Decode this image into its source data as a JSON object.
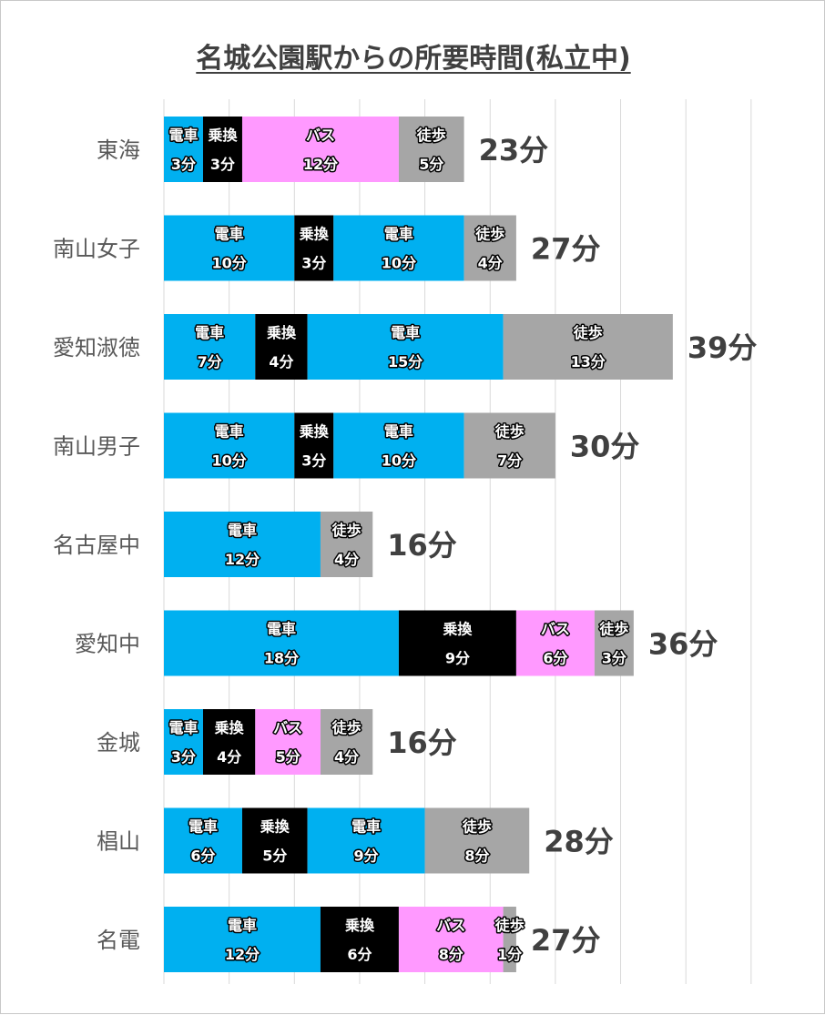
{
  "chart_data": {
    "type": "bar",
    "orientation": "horizontal",
    "stacked": true,
    "title": "名城公園駅からの所要時間(私立中)",
    "xlim": [
      0,
      45
    ],
    "grid": true,
    "colors": {
      "電車": "#00b0f0",
      "乗換": "#000000",
      "バス": "#ff99ff",
      "徒歩": "#a6a6a6"
    },
    "unit": "分",
    "rows": [
      {
        "name": "東海",
        "total": "23分",
        "segments": [
          {
            "type": "電車",
            "value": 3,
            "label": "3分"
          },
          {
            "type": "乗換",
            "value": 3,
            "label": "3分"
          },
          {
            "type": "バス",
            "value": 12,
            "label": "12分"
          },
          {
            "type": "徒歩",
            "value": 5,
            "label": "5分"
          }
        ]
      },
      {
        "name": "南山女子",
        "total": "27分",
        "segments": [
          {
            "type": "電車",
            "value": 10,
            "label": "10分"
          },
          {
            "type": "乗換",
            "value": 3,
            "label": "3分"
          },
          {
            "type": "電車",
            "value": 10,
            "label": "10分"
          },
          {
            "type": "徒歩",
            "value": 4,
            "label": "4分"
          }
        ]
      },
      {
        "name": "愛知淑徳",
        "total": "39分",
        "segments": [
          {
            "type": "電車",
            "value": 7,
            "label": "7分"
          },
          {
            "type": "乗換",
            "value": 4,
            "label": "4分"
          },
          {
            "type": "電車",
            "value": 15,
            "label": "15分"
          },
          {
            "type": "徒歩",
            "value": 13,
            "label": "13分"
          }
        ]
      },
      {
        "name": "南山男子",
        "total": "30分",
        "segments": [
          {
            "type": "電車",
            "value": 10,
            "label": "10分"
          },
          {
            "type": "乗換",
            "value": 3,
            "label": "3分"
          },
          {
            "type": "電車",
            "value": 10,
            "label": "10分"
          },
          {
            "type": "徒歩",
            "value": 7,
            "label": "7分"
          }
        ]
      },
      {
        "name": "名古屋中",
        "total": "16分",
        "segments": [
          {
            "type": "電車",
            "value": 12,
            "label": "12分"
          },
          {
            "type": "徒歩",
            "value": 4,
            "label": "4分"
          }
        ]
      },
      {
        "name": "愛知中",
        "total": "36分",
        "segments": [
          {
            "type": "電車",
            "value": 18,
            "label": "18分"
          },
          {
            "type": "乗換",
            "value": 9,
            "label": "9分"
          },
          {
            "type": "バス",
            "value": 6,
            "label": "6分"
          },
          {
            "type": "徒歩",
            "value": 3,
            "label": "3分"
          }
        ]
      },
      {
        "name": "金城",
        "total": "16分",
        "segments": [
          {
            "type": "電車",
            "value": 3,
            "label": "3分"
          },
          {
            "type": "乗換",
            "value": 4,
            "label": "4分"
          },
          {
            "type": "バス",
            "value": 5,
            "label": "5分"
          },
          {
            "type": "徒歩",
            "value": 4,
            "label": "4分"
          }
        ]
      },
      {
        "name": "椙山",
        "total": "28分",
        "segments": [
          {
            "type": "電車",
            "value": 6,
            "label": "6分"
          },
          {
            "type": "乗換",
            "value": 5,
            "label": "5分"
          },
          {
            "type": "電車",
            "value": 9,
            "label": "9分"
          },
          {
            "type": "徒歩",
            "value": 8,
            "label": "8分"
          }
        ]
      },
      {
        "name": "名電",
        "total": "27分",
        "segments": [
          {
            "type": "電車",
            "value": 12,
            "label": "12分"
          },
          {
            "type": "乗換",
            "value": 6,
            "label": "6分"
          },
          {
            "type": "バス",
            "value": 8,
            "label": "8分"
          },
          {
            "type": "徒歩",
            "value": 1,
            "label": "1分"
          }
        ]
      }
    ]
  }
}
